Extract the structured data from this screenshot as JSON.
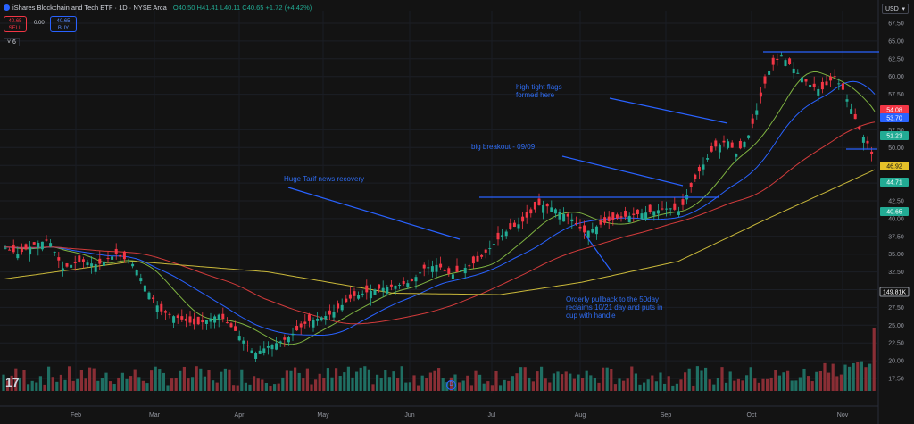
{
  "header": {
    "title": "iShares Blockchain and Tech ETF · 1D · NYSE Arca",
    "ohlc": "O40.50 H41.41 L40.11 C40.65 +1.72 (+4.42%)",
    "sell_price": "40.65",
    "sell_label": "SELL",
    "spread": "0.00",
    "buy_price": "40.65",
    "buy_label": "BUY",
    "indicators_count": "6",
    "currency": "USD"
  },
  "chart_data": {
    "type": "candlestick",
    "x_labels": [
      "Feb",
      "Mar",
      "Apr",
      "May",
      "Jun",
      "Jul",
      "Aug",
      "Sep",
      "Oct",
      "Nov"
    ],
    "ylim": [
      15,
      67.5
    ],
    "y_ticks": [
      17.5,
      20.0,
      22.5,
      25.0,
      27.5,
      30.0,
      32.5,
      35.0,
      37.5,
      40.0,
      42.5,
      45.0,
      47.5,
      50.0,
      52.5,
      55.0,
      57.5,
      60.0,
      62.5,
      65.0,
      67.5
    ],
    "price_badges": [
      {
        "value": "54.08",
        "color": "#f23645"
      },
      {
        "value": "53.70",
        "color": "#2962ff"
      },
      {
        "value": "51.23",
        "color": "#22ab94"
      },
      {
        "value": "46.92",
        "color": "#e6c229"
      },
      {
        "value": "44.71",
        "color": "#22ab94"
      },
      {
        "value": "40.65",
        "color": "#22ab94"
      },
      {
        "value": "149.81K",
        "color": "#131313"
      }
    ],
    "annotations": [
      {
        "text": "Huge Tarif news recovery"
      },
      {
        "text": "big breakout - 09/09"
      },
      {
        "text": "high tight flags"
      },
      {
        "text": "formed here"
      },
      {
        "text": "Orderly pullback to the 50day"
      },
      {
        "text": "reclaims 10/21 day and puts in"
      },
      {
        "text": "cup with handle"
      }
    ],
    "ma_colors": {
      "ma10": "#7fb341",
      "ma21": "#2962ff",
      "ma50": "#d23b3b",
      "ma200": "#c9b83a"
    },
    "candle_up": "#22ab94",
    "candle_down": "#f23645",
    "annotation_color": "#2962ff"
  }
}
